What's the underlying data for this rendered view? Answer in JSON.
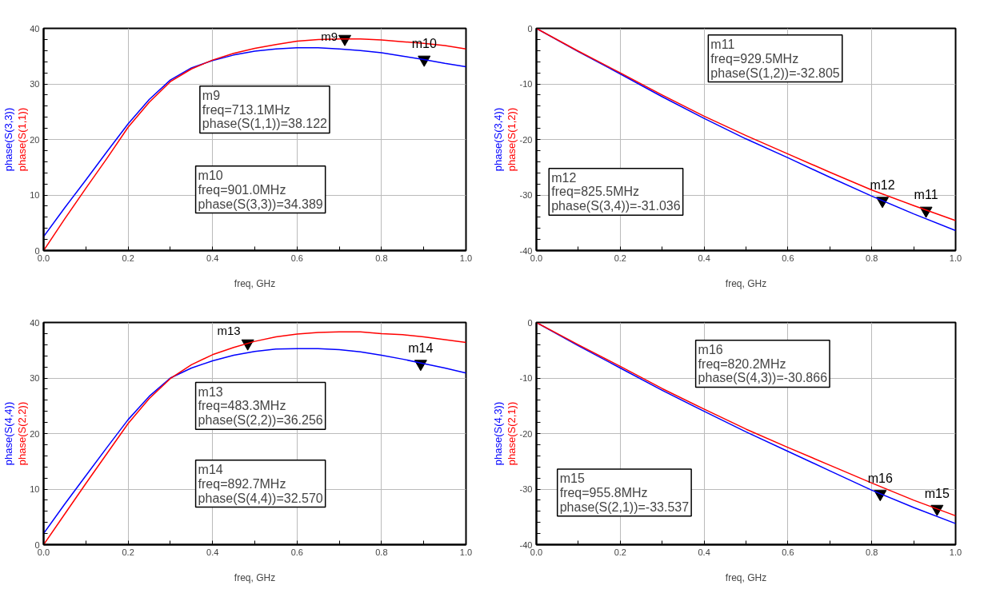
{
  "chart_data": [
    {
      "type": "line",
      "xlabel": "freq, GHz",
      "x": [
        0,
        0.05,
        0.1,
        0.15,
        0.2,
        0.25,
        0.3,
        0.35,
        0.4,
        0.45,
        0.5,
        0.55,
        0.6,
        0.65,
        0.7,
        0.75,
        0.8,
        0.85,
        0.9,
        0.95,
        1.0
      ],
      "series": [
        {
          "name": "phase(S(3,3))",
          "color": "#0000ff",
          "values": [
            2.5,
            7.7,
            12.7,
            17.8,
            22.8,
            27.2,
            30.7,
            32.9,
            34.2,
            35.2,
            35.9,
            36.3,
            36.5,
            36.5,
            36.3,
            36.0,
            35.6,
            35.0,
            34.4,
            33.7,
            33.1
          ]
        },
        {
          "name": "phase(S(1,1))",
          "color": "#ff0000",
          "values": [
            0,
            5.7,
            11.2,
            16.6,
            22.2,
            26.7,
            30.4,
            32.7,
            34.3,
            35.5,
            36.4,
            37.1,
            37.7,
            38.0,
            38.1,
            38.1,
            37.9,
            37.6,
            37.3,
            36.9,
            36.3
          ]
        }
      ],
      "xlim": [
        0,
        1
      ],
      "ylim": [
        0,
        40
      ],
      "xticks": [
        {
          "value": 0,
          "label": "0.0"
        },
        {
          "value": 0.1,
          "label": null
        },
        {
          "value": 0.2,
          "label": "0.2"
        },
        {
          "value": 0.3,
          "label": null
        },
        {
          "value": 0.4,
          "label": "0.4"
        },
        {
          "value": 0.5,
          "label": null
        },
        {
          "value": 0.6,
          "label": "0.6"
        },
        {
          "value": 0.7,
          "label": null
        },
        {
          "value": 0.8,
          "label": "0.8"
        },
        {
          "value": 0.9,
          "label": null
        },
        {
          "value": 1,
          "label": "1.0"
        }
      ],
      "yticks": [
        0,
        {
          "value": 2,
          "label": null
        },
        {
          "value": 4,
          "label": null
        },
        {
          "value": 6,
          "label": null
        },
        {
          "value": 8,
          "label": null
        },
        10,
        {
          "value": 12,
          "label": null
        },
        {
          "value": 14,
          "label": null
        },
        {
          "value": 16,
          "label": null
        },
        {
          "value": 18,
          "label": null
        },
        20,
        {
          "value": 22,
          "label": null
        },
        {
          "value": 24,
          "label": null
        },
        {
          "value": 26,
          "label": null
        },
        {
          "value": 28,
          "label": null
        },
        30,
        {
          "value": 32,
          "label": null
        },
        {
          "value": 34,
          "label": null
        },
        {
          "value": 36,
          "label": null
        },
        {
          "value": 38,
          "label": null
        },
        40
      ],
      "grid": true,
      "marker": "none",
      "annotations": [
        {
          "text": "m9",
          "x": 0.7131,
          "y": 38.122
        },
        {
          "text": "m10",
          "x": 0.901,
          "y": 34.389
        },
        "m9\nfreq=713.1MHz\nphase(S(1,1))=38.122",
        "m10\nfreq=901.0MHz\nphase(S(3,3))=34.389"
      ]
    },
    {
      "type": "line",
      "xlabel": "freq, GHz",
      "x": [
        0,
        0.1,
        0.2,
        0.3,
        0.4,
        0.5,
        0.6,
        0.7,
        0.8,
        0.9,
        1.0
      ],
      "series": [
        {
          "name": "phase(S(3,4))",
          "color": "#0000ff",
          "values": [
            0,
            -4.2,
            -8.2,
            -12.3,
            -16.2,
            -19.9,
            -23.3,
            -26.8,
            -30.2,
            -33.4,
            -36.4
          ]
        },
        {
          "name": "phase(S(1,2))",
          "color": "#ff0000",
          "values": [
            0,
            -4.1,
            -8.0,
            -12.0,
            -15.8,
            -19.3,
            -22.6,
            -25.9,
            -29.1,
            -31.9,
            -34.6
          ]
        }
      ],
      "xlim": [
        0,
        1
      ],
      "ylim": [
        -40,
        0
      ],
      "xticks": [
        {
          "value": 0,
          "label": "0.0"
        },
        {
          "value": 0.1,
          "label": null
        },
        {
          "value": 0.2,
          "label": "0.2"
        },
        {
          "value": 0.3,
          "label": null
        },
        {
          "value": 0.4,
          "label": "0.4"
        },
        {
          "value": 0.5,
          "label": null
        },
        {
          "value": 0.6,
          "label": "0.6"
        },
        {
          "value": 0.7,
          "label": null
        },
        {
          "value": 0.8,
          "label": "0.8"
        },
        {
          "value": 0.9,
          "label": null
        },
        {
          "value": 1,
          "label": "1.0"
        }
      ],
      "yticks": [
        -40,
        {
          "value": -38,
          "label": null
        },
        {
          "value": -36,
          "label": null
        },
        {
          "value": -34,
          "label": null
        },
        {
          "value": -32,
          "label": null
        },
        -30,
        {
          "value": -28,
          "label": null
        },
        {
          "value": -26,
          "label": null
        },
        {
          "value": -24,
          "label": null
        },
        {
          "value": -22,
          "label": null
        },
        -20,
        {
          "value": -18,
          "label": null
        },
        {
          "value": -16,
          "label": null
        },
        {
          "value": -14,
          "label": null
        },
        {
          "value": -12,
          "label": null
        },
        -10,
        {
          "value": -8,
          "label": null
        },
        {
          "value": -6,
          "label": null
        },
        {
          "value": -4,
          "label": null
        },
        {
          "value": -2,
          "label": null
        },
        0
      ],
      "grid": true,
      "marker": "none",
      "annotations": [
        {
          "text": "m12",
          "x": 0.8255,
          "y": -31.036
        },
        {
          "text": "m11",
          "x": 0.9295,
          "y": -32.805
        },
        "m11\nfreq=929.5MHz\nphase(S(1,2))=-32.805",
        "m12\nfreq=825.5MHz\nphase(S(3,4))=-31.036"
      ]
    },
    {
      "type": "line",
      "xlabel": "freq, GHz",
      "x": [
        0,
        0.05,
        0.1,
        0.15,
        0.2,
        0.25,
        0.3,
        0.35,
        0.4,
        0.45,
        0.5,
        0.55,
        0.6,
        0.65,
        0.7,
        0.75,
        0.8,
        0.85,
        0.9,
        0.95,
        1.0
      ],
      "series": [
        {
          "name": "phase(S(4,4))",
          "color": "#0000ff",
          "values": [
            2.0,
            7.3,
            12.4,
            17.5,
            22.5,
            26.7,
            30.0,
            31.8,
            33.1,
            34.1,
            34.8,
            35.2,
            35.3,
            35.3,
            35.1,
            34.7,
            34.1,
            33.4,
            32.6,
            31.8,
            30.9
          ]
        },
        {
          "name": "phase(S(2,2))",
          "color": "#ff0000",
          "values": [
            0,
            5.5,
            11.0,
            16.4,
            21.8,
            26.3,
            29.9,
            32.4,
            34.2,
            35.5,
            36.6,
            37.4,
            37.9,
            38.2,
            38.3,
            38.3,
            38.0,
            37.8,
            37.4,
            36.9,
            36.4
          ]
        }
      ],
      "xlim": [
        0,
        1
      ],
      "ylim": [
        0,
        40
      ],
      "xticks": [
        {
          "value": 0,
          "label": "0.0"
        },
        {
          "value": 0.1,
          "label": null
        },
        {
          "value": 0.2,
          "label": "0.2"
        },
        {
          "value": 0.3,
          "label": null
        },
        {
          "value": 0.4,
          "label": "0.4"
        },
        {
          "value": 0.5,
          "label": null
        },
        {
          "value": 0.6,
          "label": "0.6"
        },
        {
          "value": 0.7,
          "label": null
        },
        {
          "value": 0.8,
          "label": "0.8"
        },
        {
          "value": 0.9,
          "label": null
        },
        {
          "value": 1,
          "label": "1.0"
        }
      ],
      "yticks": [
        0,
        {
          "value": 2,
          "label": null
        },
        {
          "value": 4,
          "label": null
        },
        {
          "value": 6,
          "label": null
        },
        {
          "value": 8,
          "label": null
        },
        10,
        {
          "value": 12,
          "label": null
        },
        {
          "value": 14,
          "label": null
        },
        {
          "value": 16,
          "label": null
        },
        {
          "value": 18,
          "label": null
        },
        20,
        {
          "value": 22,
          "label": null
        },
        {
          "value": 24,
          "label": null
        },
        {
          "value": 26,
          "label": null
        },
        {
          "value": 28,
          "label": null
        },
        30,
        {
          "value": 32,
          "label": null
        },
        {
          "value": 34,
          "label": null
        },
        {
          "value": 36,
          "label": null
        },
        {
          "value": 38,
          "label": null
        },
        40
      ],
      "grid": true,
      "marker": "none",
      "annotations": [
        {
          "text": "m13",
          "x": 0.4833,
          "y": 36.256
        },
        {
          "text": "m14",
          "x": 0.8927,
          "y": 32.57
        },
        "m13\nfreq=483.3MHz\nphase(S(2,2))=36.256",
        "m14\nfreq=892.7MHz\nphase(S(4,4))=32.570"
      ]
    },
    {
      "type": "line",
      "xlabel": "freq, GHz",
      "x": [
        0,
        0.1,
        0.2,
        0.3,
        0.4,
        0.5,
        0.6,
        0.7,
        0.8,
        0.9,
        1.0
      ],
      "series": [
        {
          "name": "phase(S(4,3))",
          "color": "#0000ff",
          "values": [
            0,
            -4.2,
            -8.2,
            -12.2,
            -16.0,
            -19.7,
            -23.2,
            -26.7,
            -30.2,
            -33.3,
            -36.2
          ]
        },
        {
          "name": "phase(S(2,1))",
          "color": "#ff0000",
          "values": [
            0,
            -4.0,
            -7.9,
            -11.9,
            -15.6,
            -19.2,
            -22.5,
            -25.7,
            -28.9,
            -32.0,
            -34.8
          ]
        }
      ],
      "xlim": [
        0,
        1
      ],
      "ylim": [
        -40,
        0
      ],
      "xticks": [
        {
          "value": 0,
          "label": "0.0"
        },
        {
          "value": 0.1,
          "label": null
        },
        {
          "value": 0.2,
          "label": "0.2"
        },
        {
          "value": 0.3,
          "label": null
        },
        {
          "value": 0.4,
          "label": "0.4"
        },
        {
          "value": 0.5,
          "label": null
        },
        {
          "value": 0.6,
          "label": "0.6"
        },
        {
          "value": 0.7,
          "label": null
        },
        {
          "value": 0.8,
          "label": "0.8"
        },
        {
          "value": 0.9,
          "label": null
        },
        {
          "value": 1,
          "label": "1.0"
        }
      ],
      "yticks": [
        -40,
        {
          "value": -38,
          "label": null
        },
        {
          "value": -36,
          "label": null
        },
        {
          "value": -34,
          "label": null
        },
        {
          "value": -32,
          "label": null
        },
        -30,
        {
          "value": -28,
          "label": null
        },
        {
          "value": -26,
          "label": null
        },
        {
          "value": -24,
          "label": null
        },
        {
          "value": -22,
          "label": null
        },
        -20,
        {
          "value": -18,
          "label": null
        },
        {
          "value": -16,
          "label": null
        },
        {
          "value": -14,
          "label": null
        },
        {
          "value": -12,
          "label": null
        },
        -10,
        {
          "value": -8,
          "label": null
        },
        {
          "value": -6,
          "label": null
        },
        {
          "value": -4,
          "label": null
        },
        {
          "value": -2,
          "label": null
        },
        0
      ],
      "grid": true,
      "marker": "none",
      "annotations": [
        {
          "text": "m16",
          "x": 0.8202,
          "y": -30.866
        },
        {
          "text": "m15",
          "x": 0.9558,
          "y": -33.537
        },
        "m16\nfreq=820.2MHz\nphase(S(4,3))=-30.866",
        "m15\nfreq=955.8MHz\nphase(S(2,1))=-33.537"
      ]
    }
  ]
}
